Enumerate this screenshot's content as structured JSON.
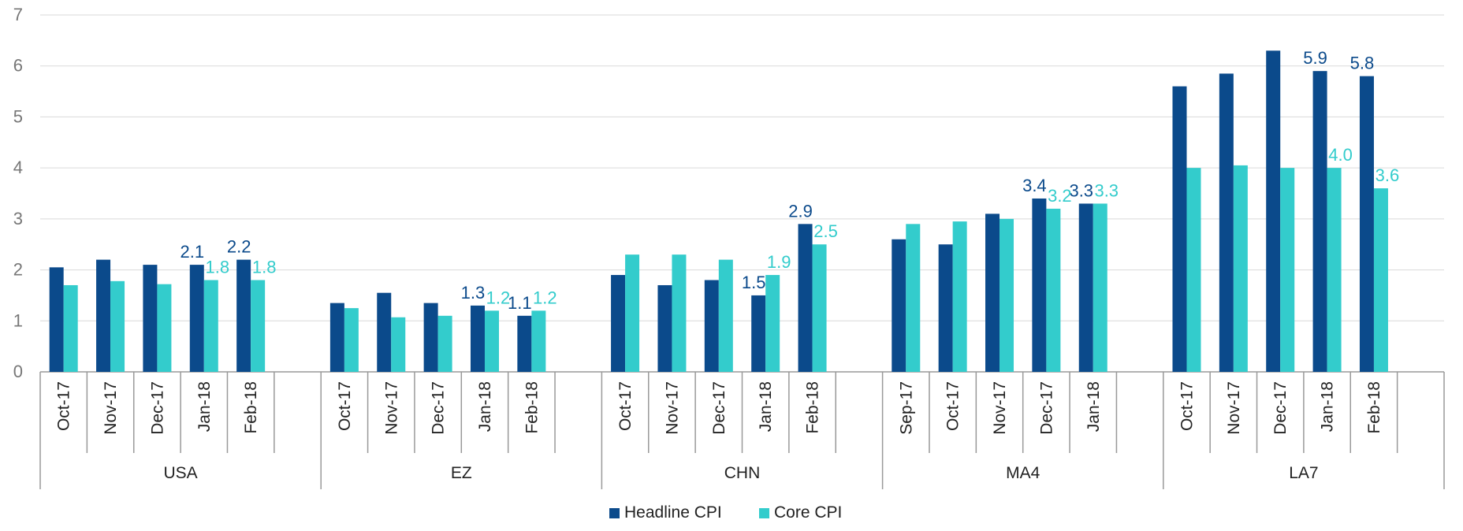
{
  "chart_data": {
    "type": "bar",
    "groups": [
      "USA",
      "EZ",
      "CHN",
      "MA4",
      "LA7"
    ],
    "categories": [
      "Oct-17",
      "Nov-17",
      "Dec-17",
      "Jan-18",
      "Feb-18",
      null,
      "Oct-17",
      "Nov-17",
      "Dec-17",
      "Jan-18",
      "Feb-18",
      null,
      "Oct-17",
      "Nov-17",
      "Dec-17",
      "Jan-18",
      "Feb-18",
      null,
      "Sep-17",
      "Oct-17",
      "Nov-17",
      "Dec-17",
      "Jan-18",
      null,
      "Oct-17",
      "Nov-17",
      "Dec-17",
      "Jan-18",
      "Feb-18"
    ],
    "series": [
      {
        "name": "Headline CPI",
        "color": "#0b4a8b",
        "values": [
          2.05,
          2.2,
          2.1,
          2.1,
          2.2,
          null,
          1.35,
          1.55,
          1.35,
          1.3,
          1.1,
          null,
          1.9,
          1.7,
          1.8,
          1.5,
          2.9,
          null,
          2.6,
          2.5,
          3.1,
          3.4,
          3.3,
          null,
          5.6,
          5.85,
          6.3,
          5.9,
          5.8
        ],
        "value_labels": [
          null,
          null,
          null,
          "2.1",
          "2.2",
          null,
          null,
          null,
          null,
          "1.3",
          "1.1",
          null,
          null,
          null,
          null,
          "1.5",
          "2.9",
          null,
          null,
          null,
          null,
          "3.4",
          "3.3",
          null,
          null,
          null,
          null,
          "5.9",
          "5.8"
        ]
      },
      {
        "name": "Core CPI",
        "color": "#33cccc",
        "values": [
          1.7,
          1.78,
          1.72,
          1.8,
          1.8,
          null,
          1.25,
          1.07,
          1.1,
          1.2,
          1.2,
          null,
          2.3,
          2.3,
          2.2,
          1.9,
          2.5,
          null,
          2.9,
          2.95,
          3.0,
          3.2,
          3.3,
          null,
          4.0,
          4.05,
          4.0,
          4.0,
          3.6
        ],
        "value_labels": [
          null,
          null,
          null,
          "1.8",
          "1.8",
          null,
          null,
          null,
          null,
          "1.2",
          "1.2",
          null,
          null,
          null,
          null,
          "1.9",
          "2.5",
          null,
          null,
          null,
          null,
          "3.2",
          "3.3",
          null,
          null,
          null,
          null,
          "4.0",
          "3.6"
        ]
      }
    ],
    "ylim": [
      0,
      7
    ],
    "yticks": [
      0,
      1,
      2,
      3,
      4,
      5,
      6,
      7
    ],
    "grid": true,
    "legend": "bottom"
  }
}
